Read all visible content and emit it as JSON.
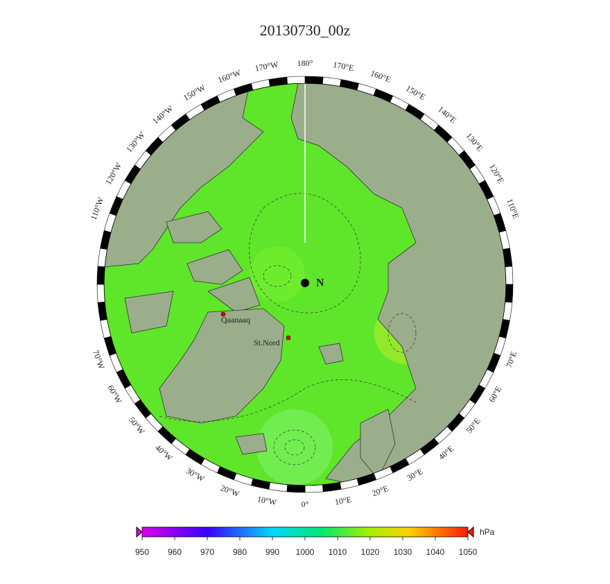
{
  "title": "20130730_00z",
  "longitude_labels": [
    "180°",
    "170°E",
    "160°E",
    "150°E",
    "140°E",
    "130°E",
    "120°E",
    "110°E",
    "70°E",
    "60°E",
    "50°E",
    "40°E",
    "30°E",
    "20°E",
    "10°E",
    "0°",
    "10°W",
    "20°W",
    "30°W",
    "40°W",
    "50°W",
    "60°W",
    "70°W",
    "110°W",
    "120°W",
    "130°W",
    "140°W",
    "150°W",
    "160°W",
    "170°W"
  ],
  "pole_label": "N",
  "stations": [
    "Qaanaaq",
    "St.Nord"
  ],
  "colorbar": {
    "unit": "hPa",
    "range": [
      950,
      1050
    ],
    "ticks": [
      950,
      960,
      970,
      980,
      990,
      1000,
      1010,
      1020,
      1030,
      1040,
      1050
    ]
  }
}
